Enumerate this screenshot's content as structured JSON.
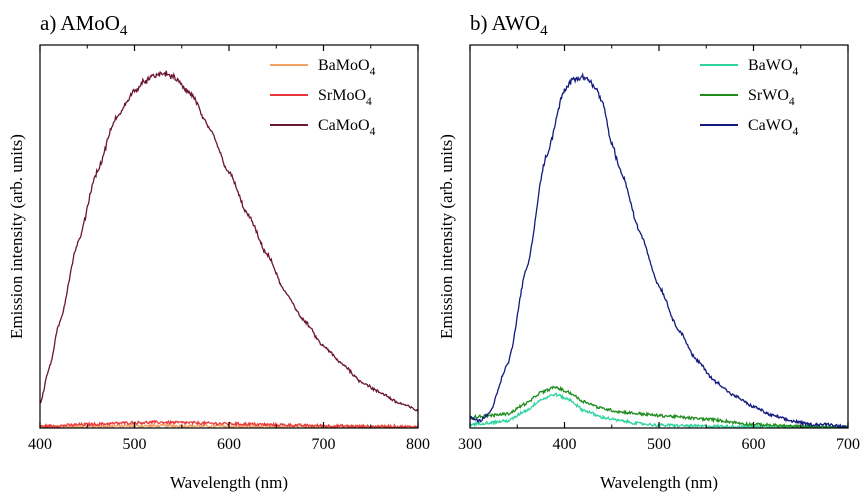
{
  "chart_data": [
    {
      "type": "line",
      "title": "a) AMoO",
      "title_sub": "4",
      "xlabel": "Wavelength (nm)",
      "ylabel": "Emission intensity (arb. units)",
      "xlim": [
        400,
        800
      ],
      "ylim": [
        0,
        1.0
      ],
      "xticks": [
        400,
        500,
        600,
        700,
        800
      ],
      "yticks_shown": false,
      "grid": false,
      "legend_position": "top-right",
      "series": [
        {
          "name": "BaMoO",
          "name_sub": "4",
          "color": "#f2a160",
          "x": [
            400,
            450,
            500,
            525,
            550,
            600,
            650,
            700,
            750,
            800
          ],
          "y": [
            0.004,
            0.005,
            0.006,
            0.006,
            0.006,
            0.005,
            0.004,
            0.003,
            0.003,
            0.002
          ]
        },
        {
          "name": "SrMoO",
          "name_sub": "4",
          "color": "#e8383b",
          "x": [
            400,
            450,
            500,
            525,
            550,
            600,
            650,
            700,
            750,
            800
          ],
          "y": [
            0.004,
            0.01,
            0.015,
            0.016,
            0.015,
            0.012,
            0.009,
            0.006,
            0.004,
            0.003
          ]
        },
        {
          "name": "CaMoO",
          "name_sub": "4",
          "color": "#6b1530",
          "x": [
            400,
            410,
            420,
            440,
            460,
            480,
            500,
            510,
            520,
            530,
            540,
            560,
            580,
            600,
            620,
            640,
            660,
            680,
            700,
            720,
            740,
            760,
            780,
            800
          ],
          "y": [
            0.07,
            0.17,
            0.29,
            0.52,
            0.72,
            0.87,
            0.95,
            0.975,
            0.99,
            1.0,
            0.99,
            0.94,
            0.84,
            0.72,
            0.6,
            0.49,
            0.38,
            0.3,
            0.23,
            0.18,
            0.13,
            0.1,
            0.07,
            0.05
          ]
        }
      ]
    },
    {
      "type": "line",
      "title": "b) AWO",
      "title_sub": "4",
      "xlabel": "Wavelength (nm)",
      "ylabel": "Emission intensity (arb. units)",
      "xlim": [
        300,
        700
      ],
      "ylim": [
        0,
        1.0
      ],
      "xticks": [
        300,
        400,
        500,
        600,
        700
      ],
      "yticks_shown": false,
      "grid": false,
      "legend_position": "top-right",
      "series": [
        {
          "name": "BaWO",
          "name_sub": "4",
          "color": "#2ed3a0",
          "x": [
            300,
            320,
            340,
            360,
            375,
            390,
            405,
            420,
            440,
            460,
            480,
            500,
            550,
            600,
            650,
            700
          ],
          "y": [
            0.01,
            0.015,
            0.02,
            0.05,
            0.08,
            0.095,
            0.08,
            0.05,
            0.03,
            0.02,
            0.012,
            0.008,
            0.005,
            0.004,
            0.003,
            0.002
          ]
        },
        {
          "name": "SrWO",
          "name_sub": "4",
          "color": "#1e8c1e",
          "x": [
            300,
            320,
            340,
            360,
            375,
            390,
            405,
            420,
            440,
            460,
            480,
            500,
            550,
            600,
            650,
            700
          ],
          "y": [
            0.03,
            0.035,
            0.04,
            0.07,
            0.1,
            0.115,
            0.1,
            0.075,
            0.055,
            0.045,
            0.04,
            0.035,
            0.025,
            0.01,
            0.004,
            0.002
          ]
        },
        {
          "name": "CaWO",
          "name_sub": "4",
          "color": "#141a7d",
          "x": [
            300,
            310,
            320,
            340,
            360,
            380,
            400,
            410,
            420,
            430,
            440,
            450,
            460,
            480,
            500,
            520,
            540,
            560,
            580,
            600,
            620,
            640,
            660,
            680,
            700
          ],
          "y": [
            0.03,
            0.02,
            0.04,
            0.18,
            0.45,
            0.76,
            0.95,
            0.985,
            0.99,
            0.97,
            0.92,
            0.8,
            0.72,
            0.55,
            0.4,
            0.28,
            0.19,
            0.13,
            0.09,
            0.06,
            0.035,
            0.02,
            0.01,
            0.01,
            0.002
          ]
        }
      ]
    }
  ]
}
